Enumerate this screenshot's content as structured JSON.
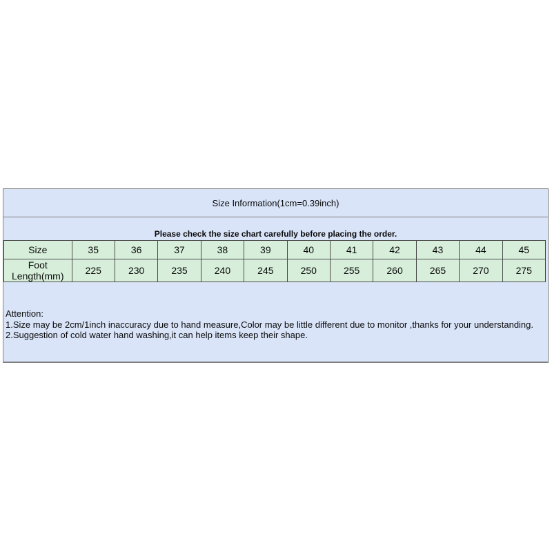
{
  "sheet": {
    "title": "Size Information(1cm=0.39inch)",
    "notice": "Please check the size chart carefully before placing the order.",
    "grid": {
      "size_row_label": "Size",
      "foot_row_label": "Foot Length(mm)",
      "sizes": [
        "35",
        "36",
        "37",
        "38",
        "39",
        "40",
        "41",
        "42",
        "43",
        "44",
        "45"
      ],
      "foot_lengths_mm": [
        "225",
        "230",
        "235",
        "240",
        "245",
        "250",
        "255",
        "260",
        "265",
        "270",
        "275"
      ]
    },
    "attention": {
      "heading": "Attention:",
      "line1": "1.Size may be 2cm/1inch inaccuracy due to hand measure,Color may be little different due to monitor ,thanks for your understanding.",
      "line2": "2.Suggestion of cold water hand washing,it can help items keep their shape."
    },
    "colors": {
      "header_bg": "#d9e4f8",
      "grid_bg": "#d6eeda",
      "outer_border": "#808080",
      "grid_border": "#4a4a4a"
    }
  }
}
